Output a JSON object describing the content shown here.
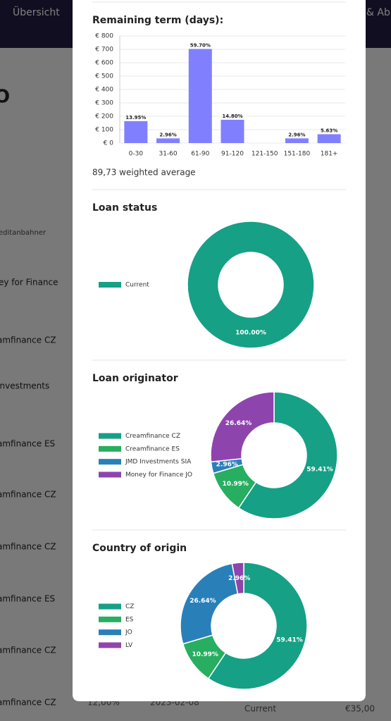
{
  "background": {
    "nav": [
      "Übersicht",
      "& Abr"
    ],
    "heading": "O",
    "column_header": "editanbahner",
    "rows": [
      "ey for Finance",
      "amfinance CZ",
      "Investments",
      "amfinance ES",
      "amfinance CZ",
      "amfinance CZ",
      "amfinance ES",
      "amfinance CZ",
      "amfinance CZ"
    ],
    "last_row": [
      "12,00%",
      "2023-02-08",
      "Current",
      "€35,00"
    ]
  },
  "chart_data": [
    {
      "type": "bar",
      "title": "Remaining term (days):",
      "categories": [
        "0-30",
        "31-60",
        "61-90",
        "91-120",
        "121-150",
        "151-180",
        "181+"
      ],
      "values": [
        164,
        35,
        703,
        174,
        0,
        35,
        66
      ],
      "share_labels": [
        "13.95%",
        "2.96%",
        "59.70%",
        "14.80%",
        null,
        "2.96%",
        "5.63%"
      ],
      "color": "#8080ff",
      "ylim": [
        0,
        800
      ],
      "yticks": [
        {
          "value": 0,
          "label": "€ 0"
        },
        {
          "value": 100,
          "label": "€ 100"
        },
        {
          "value": 200,
          "label": "€ 200"
        },
        {
          "value": 300,
          "label": "€ 300"
        },
        {
          "value": 400,
          "label": "€ 400"
        },
        {
          "value": 500,
          "label": "€ 500"
        },
        {
          "value": 600,
          "label": "€ 600"
        },
        {
          "value": 700,
          "label": "€ 700"
        },
        {
          "value": 800,
          "label": "€ 800"
        }
      ],
      "grid": true,
      "footnote": "89,73 weighted average"
    },
    {
      "type": "pie",
      "title": "Loan status",
      "categories": [
        "Current"
      ],
      "values": [
        100
      ],
      "value_labels": [
        "100.00%"
      ],
      "colors": [
        "#16a085"
      ],
      "legend": "left"
    },
    {
      "type": "pie",
      "title": "Loan originator",
      "categories": [
        "Creamfinance CZ",
        "Creamfinance ES",
        "JMD Investments SIA",
        "Money for Finance JO"
      ],
      "values": [
        59.41,
        10.99,
        2.96,
        26.64
      ],
      "value_labels": [
        "59.41%",
        "10.99%",
        "2.96%",
        "26.64%"
      ],
      "colors": [
        "#16a085",
        "#27ae60",
        "#2980b9",
        "#8e44ad"
      ],
      "legend": "left"
    },
    {
      "type": "pie",
      "title": "Country of origin",
      "categories": [
        "CZ",
        "ES",
        "JO",
        "LV"
      ],
      "values": [
        59.41,
        10.99,
        26.64,
        2.96
      ],
      "value_labels": [
        "59.41%",
        "10.99%",
        "26.64%",
        "2.96%"
      ],
      "colors": [
        "#16a085",
        "#27ae60",
        "#2980b9",
        "#8e44ad"
      ],
      "legend": "left"
    }
  ]
}
